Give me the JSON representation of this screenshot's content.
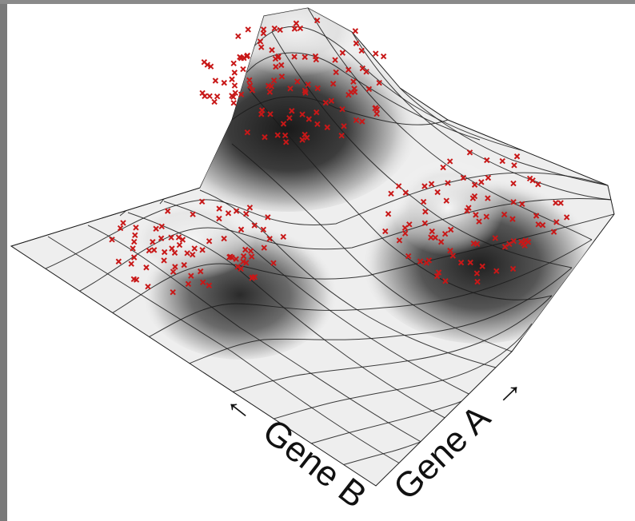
{
  "axes": {
    "gene_b": {
      "label": "Gene B",
      "arrow": "←"
    },
    "gene_a": {
      "label": "Gene A",
      "arrow": "→"
    }
  },
  "colors": {
    "surface_light": "#f4f4f4",
    "surface_dark": "#141414",
    "grid_line": "#1a1a1a",
    "points": "#c81818"
  },
  "peaks": [
    {
      "name": "top",
      "height": 1.0
    },
    {
      "name": "left",
      "height": 0.55
    },
    {
      "name": "right",
      "height": 0.85
    }
  ]
}
